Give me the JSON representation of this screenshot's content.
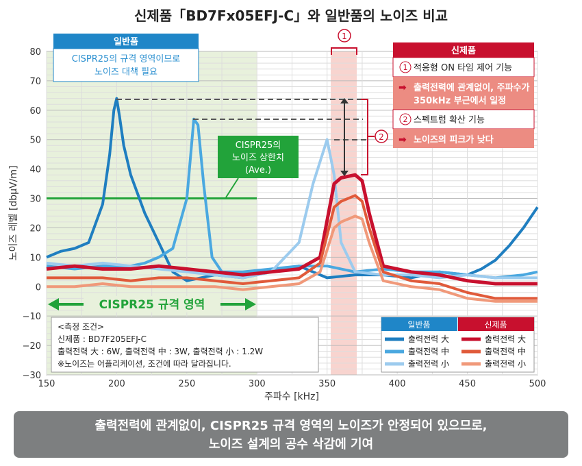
{
  "chart_data": {
    "type": "line",
    "title": "신제품「BD7Fx05EFJ-C」와 일반품의 노이즈 비교",
    "xlabel": "주파수 [kHz]",
    "ylabel": "노이즈 레벨 [dbµV/m]",
    "ylim": [
      -30,
      80
    ],
    "yticks": [
      "80",
      "70",
      "60",
      "50",
      "40",
      "30",
      "20",
      "10",
      "0",
      "−10",
      "−20",
      "−30"
    ],
    "xtick_labels": [
      "150",
      "200",
      "250",
      "300",
      "350",
      "400",
      "450",
      "500",
      "150"
    ],
    "limit_value": 30,
    "legend_groups": [
      "일반품",
      "신제품"
    ],
    "series": [
      {
        "name": "출력전력 大",
        "group": "일반품",
        "color": "#1f7ec0",
        "x": [
          0,
          10,
          20,
          30,
          40,
          45,
          48,
          50,
          52,
          55,
          60,
          70,
          80,
          90,
          100,
          110,
          120,
          140,
          160,
          180,
          200,
          220,
          240,
          260,
          280,
          300,
          310,
          320,
          330,
          340,
          350
        ],
        "y": [
          10,
          12,
          13,
          15,
          28,
          45,
          60,
          64,
          58,
          48,
          38,
          25,
          15,
          5,
          2,
          3,
          4,
          3,
          5,
          7,
          3,
          4,
          4,
          3,
          5,
          4,
          6,
          9,
          14,
          20,
          27
        ]
      },
      {
        "name": "출력전력 中",
        "group": "일반품",
        "color": "#4aa8e0",
        "x": [
          0,
          20,
          40,
          60,
          70,
          80,
          90,
          100,
          105,
          108,
          112,
          118,
          125,
          140,
          160,
          180,
          200,
          220,
          240,
          260,
          280,
          300,
          320,
          340,
          350
        ],
        "y": [
          7,
          6,
          7,
          7,
          8,
          10,
          13,
          30,
          57,
          55,
          35,
          10,
          5,
          5,
          6,
          7,
          7,
          5,
          6,
          5,
          5,
          4,
          3,
          4,
          5
        ]
      },
      {
        "name": "출력전력 小",
        "group": "일반품",
        "color": "#9ccbee",
        "x": [
          0,
          20,
          40,
          60,
          80,
          100,
          120,
          140,
          160,
          180,
          190,
          200,
          205,
          210,
          220,
          240,
          260,
          280,
          300,
          320,
          350
        ],
        "y": [
          8,
          7,
          8,
          7,
          6,
          5,
          4,
          3,
          5,
          15,
          35,
          50,
          38,
          15,
          5,
          4,
          4,
          3,
          4,
          3,
          3
        ]
      },
      {
        "name": "출력전력 大",
        "group": "신제품",
        "color": "#c8102e",
        "x": [
          0,
          20,
          40,
          60,
          80,
          100,
          120,
          140,
          160,
          180,
          195,
          205,
          210,
          220,
          225,
          230,
          240,
          260,
          280,
          300,
          320,
          340,
          350
        ],
        "y": [
          6,
          7,
          6,
          6,
          7,
          6,
          5,
          4,
          5,
          6,
          10,
          35,
          37,
          38,
          36,
          25,
          7,
          5,
          4,
          2,
          1,
          1,
          1
        ]
      },
      {
        "name": "출력전력 中",
        "group": "신제품",
        "color": "#e05a3a",
        "x": [
          0,
          20,
          40,
          60,
          80,
          100,
          120,
          140,
          160,
          180,
          195,
          205,
          210,
          220,
          225,
          230,
          240,
          260,
          280,
          300,
          320,
          340,
          350
        ],
        "y": [
          3,
          3,
          3,
          2,
          3,
          3,
          2,
          1,
          2,
          3,
          8,
          27,
          29,
          31,
          29,
          20,
          5,
          2,
          1,
          -2,
          -4,
          -4,
          -4
        ]
      },
      {
        "name": "출력전력 小",
        "group": "신제품",
        "color": "#f0997a",
        "x": [
          0,
          20,
          40,
          60,
          80,
          100,
          120,
          140,
          160,
          180,
          195,
          205,
          210,
          220,
          225,
          230,
          240,
          260,
          280,
          300,
          320,
          340,
          350
        ],
        "y": [
          0,
          0,
          1,
          0,
          0,
          0,
          0,
          -1,
          0,
          1,
          5,
          20,
          22,
          24,
          23,
          15,
          2,
          0,
          -1,
          -4,
          -5,
          -5,
          -5
        ]
      }
    ],
    "annotations": {
      "general_header": "일반품",
      "general_line1": "CISPR25의 규격 영역이므로",
      "general_line2": "노이즈 대책 필요",
      "new_header": "신제품",
      "marker1": "1",
      "marker2": "2",
      "arrow": "➡",
      "feature1": "적응형 ON 타임 제어 기능",
      "effect1_line1": "출력전력에 관계없이, 주파수가",
      "effect1_line2": "350kHz 부근에서 일정",
      "feature2": "스펙트럼 확산 기능",
      "effect2": "노이즈의 피크가 낮다",
      "limit_line1": "CISPR25의",
      "limit_line2": "노이즈 상한치",
      "limit_line3": "(Ave.)",
      "region_label": "CISPR25 규격 영역"
    },
    "conditions": {
      "title": "<측정 조건>",
      "line1": "신제품 : BD7F205EFJ-C",
      "line2": "출력전력 大 : 6W, 출력전력 中 : 3W, 출력전력 小 : 1.2W",
      "line3": "※노이즈는 어플리케이션, 조건에 따라 달라집니다."
    },
    "conclusion": {
      "line1": "출력전력에 관계없이, CISPR25 규격 영역의 노이즈가 안정되어 있으므로,",
      "line2": "노이즈 설계의 공수 삭감에 기여"
    }
  }
}
